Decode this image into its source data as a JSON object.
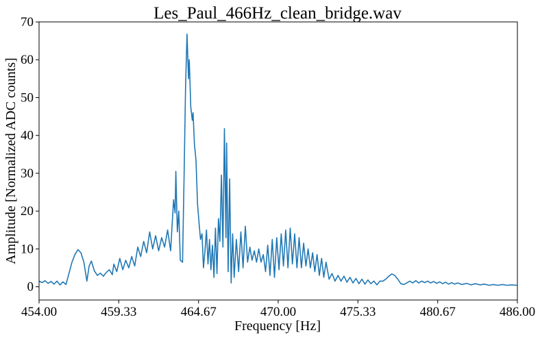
{
  "chart_data": {
    "type": "line",
    "title": "Les_Paul_466Hz_clean_bridge.wav",
    "xlabel": "Frequency [Hz]",
    "ylabel": "Amplitude [Normalized ADC counts]",
    "xlim": [
      454.0,
      486.0
    ],
    "ylim": [
      -3.5,
      70
    ],
    "x_ticks": [
      454.0,
      459.33,
      464.67,
      470.0,
      475.33,
      480.67,
      486.0
    ],
    "x_tick_labels": [
      "454.00",
      "459.33",
      "464.67",
      "470.00",
      "475.33",
      "480.67",
      "486.00"
    ],
    "y_ticks": [
      0,
      10,
      20,
      30,
      40,
      50,
      60,
      70
    ],
    "y_tick_labels": [
      "0",
      "10",
      "20",
      "30",
      "40",
      "50",
      "60",
      "70"
    ],
    "grid": false,
    "series": [
      {
        "color": "#1f77b4",
        "points": [
          [
            454.0,
            1.5
          ],
          [
            454.2,
            1.1
          ],
          [
            454.4,
            1.6
          ],
          [
            454.6,
            0.9
          ],
          [
            454.8,
            1.4
          ],
          [
            455.0,
            0.7
          ],
          [
            455.2,
            1.5
          ],
          [
            455.4,
            0.5
          ],
          [
            455.6,
            1.3
          ],
          [
            455.8,
            0.6
          ],
          [
            456.0,
            3.5
          ],
          [
            456.2,
            6.5
          ],
          [
            456.4,
            8.5
          ],
          [
            456.6,
            9.8
          ],
          [
            456.8,
            9.0
          ],
          [
            457.0,
            6.5
          ],
          [
            457.2,
            1.5
          ],
          [
            457.35,
            5.5
          ],
          [
            457.5,
            6.8
          ],
          [
            457.7,
            4.2
          ],
          [
            457.9,
            3.0
          ],
          [
            458.1,
            3.6
          ],
          [
            458.3,
            2.8
          ],
          [
            458.5,
            3.8
          ],
          [
            458.7,
            4.5
          ],
          [
            458.9,
            3.2
          ],
          [
            459.0,
            6.0
          ],
          [
            459.2,
            4.0
          ],
          [
            459.4,
            7.5
          ],
          [
            459.6,
            4.5
          ],
          [
            459.8,
            7.0
          ],
          [
            460.0,
            5.0
          ],
          [
            460.2,
            8.0
          ],
          [
            460.4,
            5.5
          ],
          [
            460.6,
            10.5
          ],
          [
            460.8,
            8.0
          ],
          [
            461.0,
            12.0
          ],
          [
            461.2,
            9.0
          ],
          [
            461.4,
            14.5
          ],
          [
            461.6,
            10.0
          ],
          [
            461.8,
            13.5
          ],
          [
            462.0,
            9.5
          ],
          [
            462.2,
            13.0
          ],
          [
            462.4,
            10.5
          ],
          [
            462.6,
            15.0
          ],
          [
            462.8,
            9.5
          ],
          [
            463.0,
            23.0
          ],
          [
            463.1,
            19.5
          ],
          [
            463.15,
            30.5
          ],
          [
            463.25,
            14.5
          ],
          [
            463.35,
            20.0
          ],
          [
            463.45,
            7.0
          ],
          [
            463.6,
            6.5
          ],
          [
            463.7,
            29.0
          ],
          [
            463.8,
            53.0
          ],
          [
            463.9,
            66.8
          ],
          [
            464.0,
            55.0
          ],
          [
            464.05,
            60.0
          ],
          [
            464.15,
            47.5
          ],
          [
            464.25,
            44.0
          ],
          [
            464.3,
            46.0
          ],
          [
            464.4,
            37.5
          ],
          [
            464.5,
            33.5
          ],
          [
            464.6,
            22.0
          ],
          [
            464.7,
            17.0
          ],
          [
            464.8,
            12.5
          ],
          [
            464.9,
            14.0
          ],
          [
            465.0,
            5.0
          ],
          [
            465.1,
            9.5
          ],
          [
            465.2,
            15.0
          ],
          [
            465.3,
            6.0
          ],
          [
            465.4,
            12.5
          ],
          [
            465.5,
            4.5
          ],
          [
            465.6,
            11.0
          ],
          [
            465.7,
            2.5
          ],
          [
            465.8,
            15.5
          ],
          [
            465.9,
            3.5
          ],
          [
            466.0,
            18.0
          ],
          [
            466.1,
            12.0
          ],
          [
            466.2,
            29.5
          ],
          [
            466.3,
            10.5
          ],
          [
            466.4,
            41.8
          ],
          [
            466.5,
            13.0
          ],
          [
            466.55,
            38.0
          ],
          [
            466.65,
            4.0
          ],
          [
            466.75,
            28.5
          ],
          [
            466.85,
            1.0
          ],
          [
            466.95,
            14.0
          ],
          [
            467.05,
            2.5
          ],
          [
            467.2,
            12.5
          ],
          [
            467.35,
            4.0
          ],
          [
            467.5,
            14.5
          ],
          [
            467.65,
            5.0
          ],
          [
            467.8,
            16.0
          ],
          [
            467.95,
            6.5
          ],
          [
            468.1,
            10.5
          ],
          [
            468.25,
            7.0
          ],
          [
            468.4,
            9.5
          ],
          [
            468.55,
            6.5
          ],
          [
            468.7,
            10.0
          ],
          [
            468.85,
            6.5
          ],
          [
            469.0,
            8.5
          ],
          [
            469.15,
            4.0
          ],
          [
            469.3,
            11.0
          ],
          [
            469.45,
            3.0
          ],
          [
            469.6,
            12.5
          ],
          [
            469.75,
            2.5
          ],
          [
            469.9,
            13.0
          ],
          [
            470.05,
            4.5
          ],
          [
            470.2,
            14.0
          ],
          [
            470.35,
            5.5
          ],
          [
            470.5,
            15.0
          ],
          [
            470.65,
            5.0
          ],
          [
            470.8,
            15.5
          ],
          [
            470.95,
            6.0
          ],
          [
            471.1,
            14.0
          ],
          [
            471.25,
            5.0
          ],
          [
            471.4,
            13.0
          ],
          [
            471.55,
            5.0
          ],
          [
            471.7,
            11.5
          ],
          [
            471.85,
            5.5
          ],
          [
            472.0,
            10.0
          ],
          [
            472.15,
            5.0
          ],
          [
            472.3,
            9.0
          ],
          [
            472.45,
            4.0
          ],
          [
            472.6,
            8.5
          ],
          [
            472.75,
            3.0
          ],
          [
            472.9,
            7.5
          ],
          [
            473.05,
            2.5
          ],
          [
            473.2,
            6.5
          ],
          [
            473.4,
            2.0
          ],
          [
            473.6,
            3.5
          ],
          [
            473.8,
            1.5
          ],
          [
            474.0,
            3.0
          ],
          [
            474.2,
            1.5
          ],
          [
            474.4,
            2.8
          ],
          [
            474.6,
            1.2
          ],
          [
            474.8,
            2.5
          ],
          [
            475.0,
            1.0
          ],
          [
            475.2,
            2.2
          ],
          [
            475.4,
            0.8
          ],
          [
            475.6,
            2.0
          ],
          [
            475.8,
            0.7
          ],
          [
            476.0,
            1.8
          ],
          [
            476.2,
            0.8
          ],
          [
            476.4,
            1.5
          ],
          [
            476.6,
            0.5
          ],
          [
            476.8,
            1.5
          ],
          [
            477.0,
            1.5
          ],
          [
            477.2,
            2.0
          ],
          [
            477.4,
            2.8
          ],
          [
            477.6,
            3.4
          ],
          [
            477.8,
            3.0
          ],
          [
            478.0,
            2.0
          ],
          [
            478.2,
            0.8
          ],
          [
            478.4,
            0.6
          ],
          [
            478.6,
            1.0
          ],
          [
            478.8,
            1.5
          ],
          [
            479.0,
            1.0
          ],
          [
            479.2,
            1.6
          ],
          [
            479.4,
            1.0
          ],
          [
            479.6,
            1.5
          ],
          [
            479.8,
            1.1
          ],
          [
            480.0,
            1.5
          ],
          [
            480.2,
            1.0
          ],
          [
            480.4,
            1.4
          ],
          [
            480.6,
            0.9
          ],
          [
            480.8,
            1.3
          ],
          [
            481.0,
            0.8
          ],
          [
            481.2,
            1.2
          ],
          [
            481.4,
            0.7
          ],
          [
            481.6,
            1.1
          ],
          [
            481.8,
            0.7
          ],
          [
            482.0,
            1.0
          ],
          [
            482.3,
            0.6
          ],
          [
            482.6,
            0.9
          ],
          [
            482.9,
            0.5
          ],
          [
            483.2,
            0.8
          ],
          [
            483.5,
            0.5
          ],
          [
            483.8,
            0.7
          ],
          [
            484.1,
            0.4
          ],
          [
            484.4,
            0.6
          ],
          [
            484.7,
            0.4
          ],
          [
            485.0,
            0.6
          ],
          [
            485.3,
            0.4
          ],
          [
            485.6,
            0.5
          ],
          [
            486.0,
            0.4
          ]
        ]
      }
    ]
  }
}
